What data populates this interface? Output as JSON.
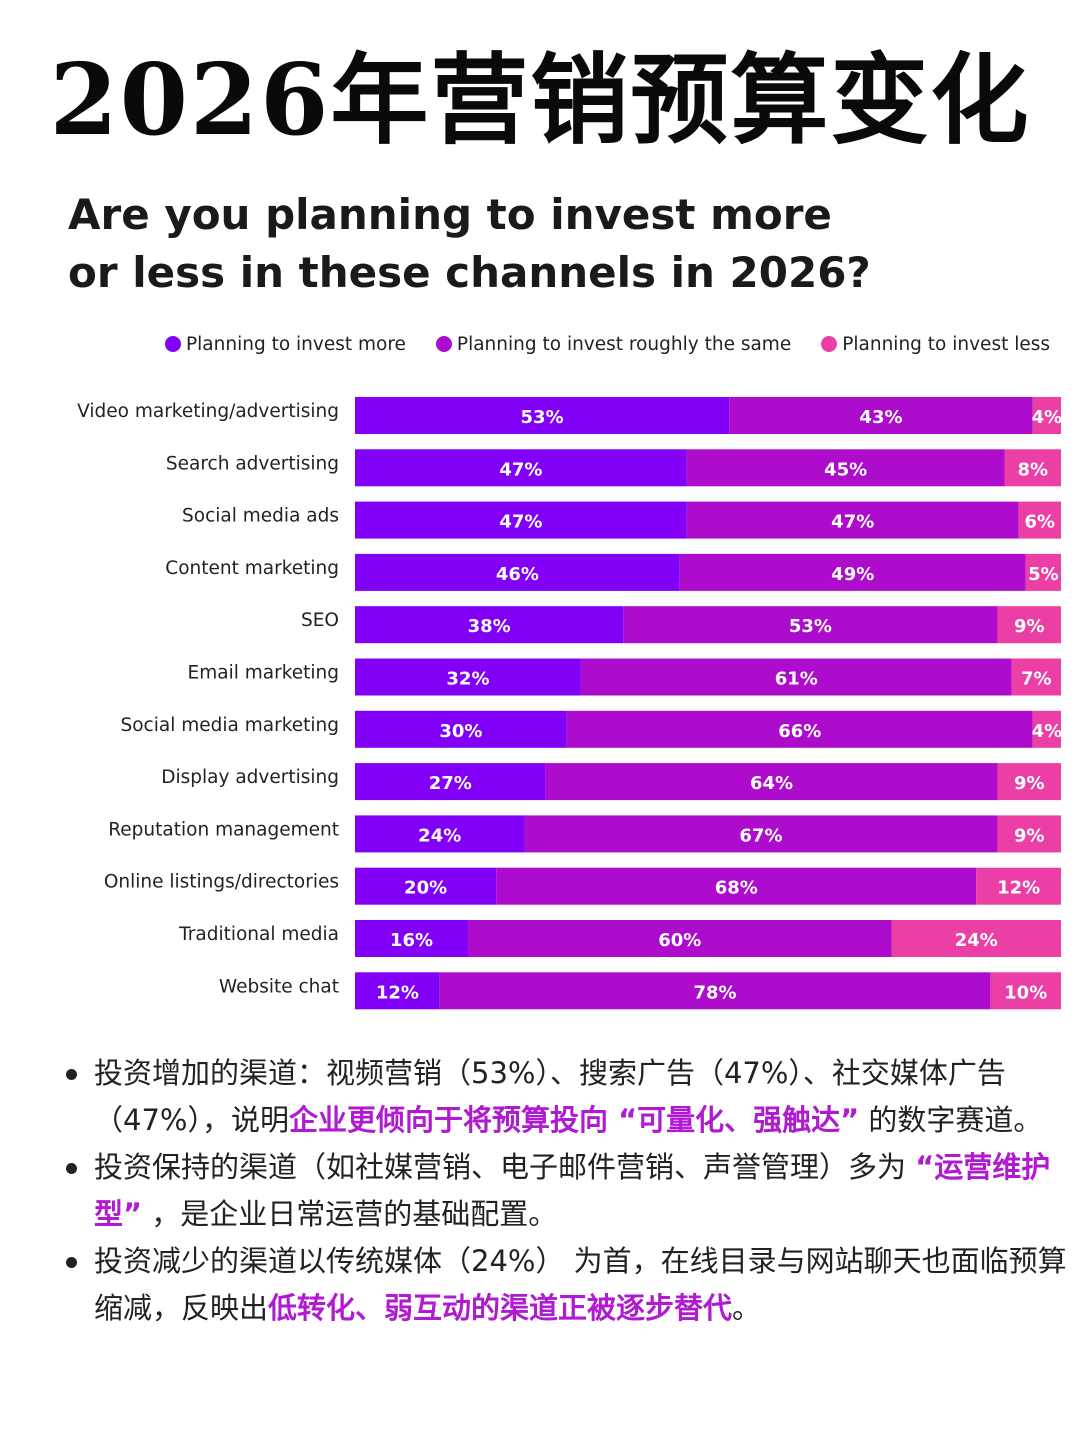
{
  "page": {
    "title": "2026年营销预算变化"
  },
  "chart_data": {
    "type": "bar",
    "orientation": "horizontal",
    "stacked": true,
    "title_lines": [
      "Are you planning to invest more",
      "or less in these channels in 2026?"
    ],
    "legend_position": "top",
    "categories": [
      "Video marketing/advertising",
      "Search advertising",
      "Social media ads",
      "Content marketing",
      "SEO",
      "Email marketing",
      "Social media marketing",
      "Display advertising",
      "Reputation management",
      "Online listings/directories",
      "Traditional media",
      "Website chat"
    ],
    "series": [
      {
        "name": "Planning to invest more",
        "color": "#8200f7",
        "values": [
          53,
          47,
          47,
          46,
          38,
          32,
          30,
          27,
          24,
          20,
          16,
          12
        ]
      },
      {
        "name": "Planning to invest roughly the same",
        "color": "#ad0ccd",
        "values": [
          43,
          45,
          47,
          49,
          53,
          61,
          66,
          64,
          67,
          68,
          60,
          78
        ]
      },
      {
        "name": "Planning to invest less",
        "color": "#ec3fa6",
        "values": [
          4,
          8,
          6,
          5,
          9,
          7,
          4,
          9,
          9,
          12,
          24,
          10
        ]
      }
    ],
    "value_suffix": "%"
  },
  "bullets": [
    {
      "parts": [
        {
          "text": "投资增加的渠道：视频营销（53%）、搜索广告（47%）、社交媒体广告（47%），说明",
          "hl": false
        },
        {
          "text": "企业更倾向于将预算投向 “可量化、强触达”",
          "hl": true
        },
        {
          "text": " 的数字赛道。",
          "hl": false
        }
      ]
    },
    {
      "parts": [
        {
          "text": "投资保持的渠道（如社媒营销、电子邮件营销、声誉管理）多为 ",
          "hl": false
        },
        {
          "text": "“运营维护型”",
          "hl": true
        },
        {
          "text": " ，是企业日常运营的基础配置。",
          "hl": false
        }
      ]
    },
    {
      "parts": [
        {
          "text": "投资减少的渠道以传统媒体（24%） 为首，在线目录与网站聊天也面临预算缩减，反映出",
          "hl": false
        },
        {
          "text": "低转化、弱互动的渠道正被逐步替代",
          "hl": true
        },
        {
          "text": "。",
          "hl": false
        }
      ]
    }
  ]
}
